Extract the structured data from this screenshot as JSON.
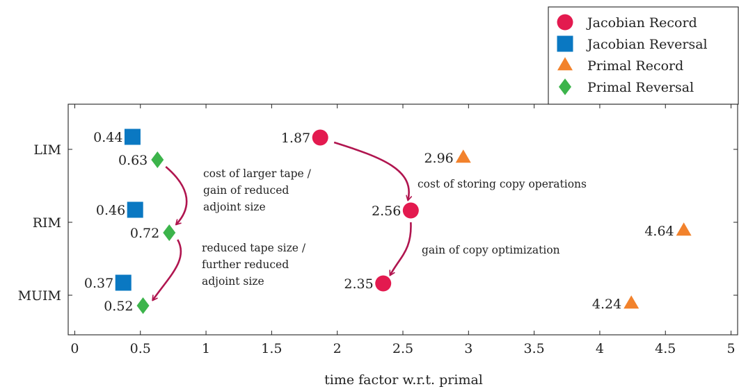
{
  "chart_data": {
    "type": "scatter",
    "xlabel": "time factor w.r.t. primal",
    "xlim": [
      -0.05,
      5.05
    ],
    "x_ticks": [
      0,
      0.5,
      1,
      1.5,
      2,
      2.5,
      3,
      3.5,
      4,
      4.5,
      5
    ],
    "x_tick_labels": [
      "0",
      "0.5",
      "1",
      "1.5",
      "2",
      "2.5",
      "3",
      "3.5",
      "4",
      "4.5",
      "5"
    ],
    "categories": [
      "LIM",
      "RIM",
      "MUIM"
    ],
    "grid": false,
    "legend_position": "top-right",
    "series": [
      {
        "name": "Jacobian Record",
        "marker": "circle",
        "color": "#e31a4f",
        "x": [
          1.87,
          2.56,
          2.35
        ],
        "labels": [
          "1.87",
          "2.56",
          "2.35"
        ]
      },
      {
        "name": "Jacobian Reversal",
        "marker": "square",
        "color": "#0a78c2",
        "x": [
          0.44,
          0.46,
          0.37
        ],
        "labels": [
          "0.44",
          "0.46",
          "0.37"
        ]
      },
      {
        "name": "Primal Record",
        "marker": "triangle",
        "color": "#f2822c",
        "x": [
          2.96,
          4.64,
          4.24
        ],
        "labels": [
          "2.96",
          "4.64",
          "4.24"
        ]
      },
      {
        "name": "Primal Reversal",
        "marker": "diamond",
        "color": "#3cb44b",
        "x": [
          0.63,
          0.72,
          0.52
        ],
        "labels": [
          "0.63",
          "0.72",
          "0.52"
        ]
      }
    ],
    "annotations": [
      {
        "lines": [
          "cost of larger tape /",
          "gain of reduced",
          "adjoint size"
        ],
        "arrow_from": {
          "series": "Primal Reversal",
          "category": "LIM"
        },
        "arrow_to": {
          "series": "Primal Reversal",
          "category": "RIM"
        }
      },
      {
        "lines": [
          "reduced tape size /",
          "further reduced",
          "adjoint size"
        ],
        "arrow_from": {
          "series": "Primal Reversal",
          "category": "RIM"
        },
        "arrow_to": {
          "series": "Primal Reversal",
          "category": "MUIM"
        }
      },
      {
        "lines": [
          "cost of storing copy operations"
        ],
        "arrow_from": {
          "series": "Jacobian Record",
          "category": "LIM"
        },
        "arrow_to": {
          "series": "Jacobian Record",
          "category": "RIM"
        }
      },
      {
        "lines": [
          "gain of copy optimization"
        ],
        "arrow_from": {
          "series": "Jacobian Record",
          "category": "RIM"
        },
        "arrow_to": {
          "series": "Jacobian Record",
          "category": "MUIM"
        }
      }
    ],
    "arrow_color": "#b0154f"
  }
}
